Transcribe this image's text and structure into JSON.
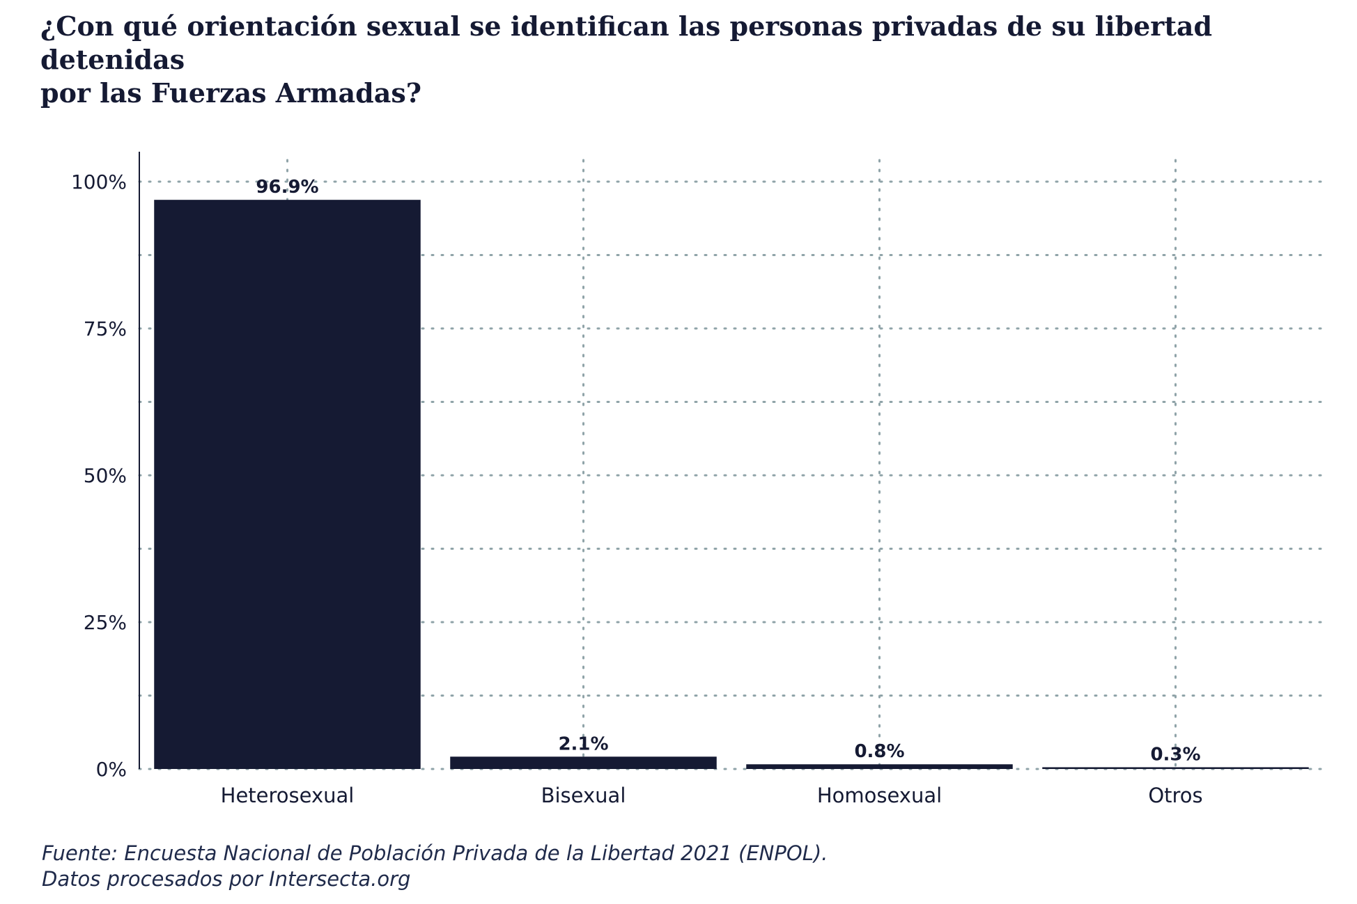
{
  "title_lines": [
    "¿Con qué orientación sexual se identifican las personas privadas de su libertad detenidas",
    "por las Fuerzas Armadas?"
  ],
  "caption_lines": [
    "Fuente: Encuesta Nacional de Población Privada de la Libertad 2021 (ENPOL).",
    "Datos procesados por Intersecta.org"
  ],
  "colors": {
    "bar": "#151a33",
    "text": "#151a33",
    "grid": "#8fa3a8",
    "axis": "#151a33"
  },
  "chart_data": {
    "type": "bar",
    "categories": [
      "Heterosexual",
      "Bisexual",
      "Homosexual",
      "Otros"
    ],
    "values": [
      96.9,
      2.1,
      0.8,
      0.3
    ],
    "data_labels": [
      "96.9%",
      "2.1%",
      "0.8%",
      "0.3%"
    ],
    "ylim": [
      0,
      100
    ],
    "y_ticks": [
      0,
      25,
      50,
      75,
      100
    ],
    "y_tick_labels": [
      "0%",
      "25%",
      "50%",
      "75%",
      "100%"
    ],
    "grid": true,
    "xlabel": "",
    "ylabel": ""
  }
}
